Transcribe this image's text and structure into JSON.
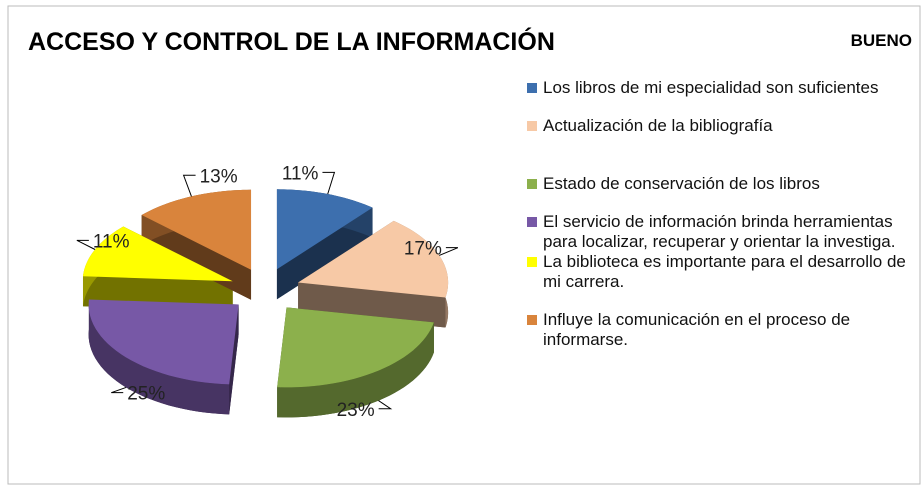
{
  "chart_data": {
    "type": "pie",
    "title": "ACCESO Y CONTROL DE LA INFORMACIÓN",
    "subtitle": "BUENO",
    "categories": [
      "Los libros de mi especialidad son suficientes",
      "Actualización de la bibliografía",
      "Estado de conservación de los libros",
      "El servicio de información brinda herramientas para localizar, recuperar y orientar la investiga.",
      "La biblioteca es importante para el desarrollo de mi carrera.",
      "Influye la comunicación en el proceso de informarse."
    ],
    "values": [
      11,
      17,
      23,
      25,
      11,
      13
    ],
    "value_labels": [
      "11%",
      "17%",
      "23%",
      "25%",
      "11%",
      "13%"
    ],
    "colors": [
      "#3d6fae",
      "#f7c9a6",
      "#8cb04c",
      "#7758a6",
      "#ffff00",
      "#d9843c"
    ],
    "legend": "right"
  }
}
